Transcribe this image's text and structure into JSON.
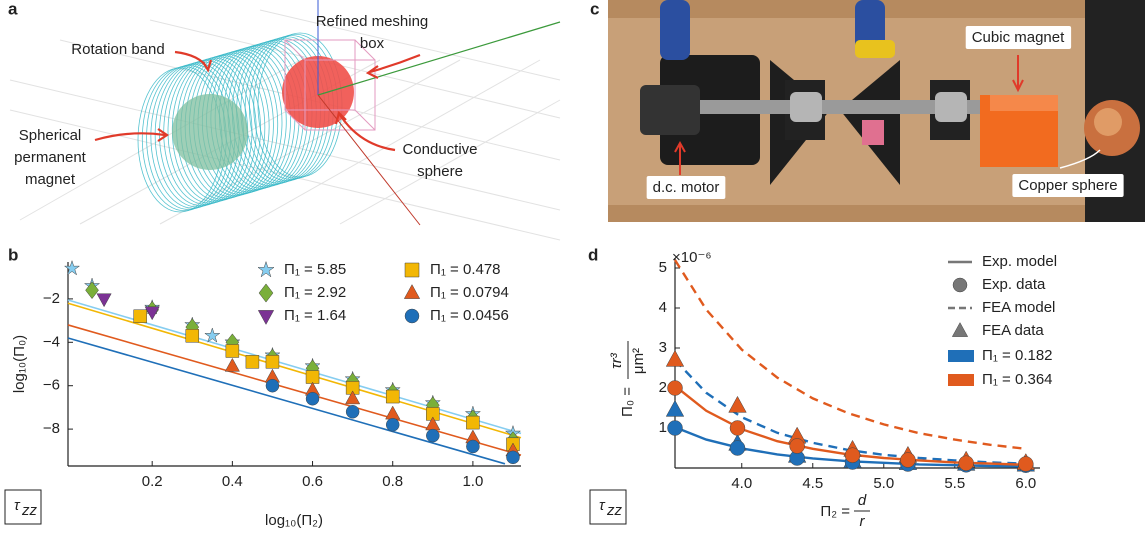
{
  "panel_a": {
    "letter": "a",
    "labels": [
      {
        "lines": [
          "Rotation band"
        ]
      },
      {
        "lines": [
          "Refined meshing",
          "box"
        ]
      },
      {
        "lines": [
          "Spherical",
          "permanent",
          "magnet"
        ]
      },
      {
        "lines": [
          "Conductive",
          "sphere"
        ]
      }
    ]
  },
  "panel_c": {
    "letter": "c",
    "labels": [
      {
        "lines": [
          "Cubic magnet"
        ]
      },
      {
        "lines": [
          "d.c. motor"
        ]
      },
      {
        "lines": [
          "Copper sphere"
        ]
      }
    ]
  },
  "chart_data": [
    {
      "type": "scatter",
      "panel": "b",
      "badge": {
        "symbol": "τ",
        "sub": "zz"
      },
      "x_label": "log₁₀(Π₂)",
      "y_label": "log₁₀(Π₀)",
      "xlim": [
        -0.01,
        1.12
      ],
      "ylim": [
        -9.7,
        -0.3
      ],
      "xticks": [
        0.2,
        0.4,
        0.6,
        0.8,
        {
          "value": 1,
          "label": "1.0"
        }
      ],
      "yticks": [
        {
          "value": -2,
          "label": "−2"
        },
        {
          "value": -4,
          "label": "−4"
        },
        {
          "value": -6,
          "label": "−6"
        },
        {
          "value": -8,
          "label": "−8"
        }
      ],
      "series": [
        {
          "name": "Π₁ = 5.85",
          "color": "#86cdf0",
          "marker": "star",
          "x": [
            0.0,
            0.05,
            0.2,
            0.3,
            0.35,
            0.4,
            0.5,
            0.6,
            0.7,
            0.8,
            0.9,
            1.0,
            1.1
          ],
          "values": [
            -0.6,
            -1.4,
            -2.4,
            -3.2,
            -3.7,
            -4.0,
            -4.6,
            -5.1,
            -5.7,
            -6.2,
            -6.8,
            -7.3,
            -8.2
          ],
          "line_x": [
            -0.01,
            1.12
          ],
          "line_values": [
            -2.05,
            -8.2
          ]
        },
        {
          "name": "Π₁ = 2.92",
          "color": "#7aaf3a",
          "marker": "diamond",
          "x": [
            0.05,
            0.2,
            0.3,
            0.4,
            0.5,
            0.6,
            0.7,
            0.8,
            0.9,
            1.0,
            1.1
          ],
          "values": [
            -1.6,
            -2.5,
            -3.3,
            -4.0,
            -4.7,
            -5.2,
            -5.8,
            -6.3,
            -6.9,
            -7.5,
            -8.5
          ]
        },
        {
          "name": "Π₁ = 1.64",
          "color": "#7b3294",
          "marker": "tri-down",
          "x": [
            0.08,
            0.2
          ],
          "values": [
            -2.0,
            -2.6
          ]
        },
        {
          "name": "Π₁ = 0.478",
          "color": "#f2b705",
          "marker": "square",
          "x": [
            0.17,
            0.3,
            0.4,
            0.45,
            0.5,
            0.6,
            0.7,
            0.8,
            0.9,
            1.0,
            1.1
          ],
          "values": [
            -2.8,
            -3.7,
            -4.4,
            -4.9,
            -4.9,
            -5.6,
            -6.1,
            -6.5,
            -7.3,
            -7.7,
            -8.7
          ],
          "line_x": [
            -0.01,
            1.12
          ],
          "line_values": [
            -2.2,
            -8.4
          ]
        },
        {
          "name": "Π₁ = 0.0794",
          "color": "#e05a1e",
          "marker": "tri-up",
          "x": [
            0.4,
            0.5,
            0.6,
            0.7,
            0.8,
            0.9,
            1.0,
            1.1
          ],
          "values": [
            -5.1,
            -5.6,
            -6.2,
            -6.6,
            -7.3,
            -7.8,
            -8.4,
            -9.0
          ],
          "line_x": [
            -0.01,
            1.12
          ],
          "line_values": [
            -3.2,
            -9.2
          ]
        },
        {
          "name": "Π₁ = 0.0456",
          "color": "#1f6fb8",
          "marker": "circle",
          "x": [
            0.5,
            0.6,
            0.7,
            0.8,
            0.9,
            1.0,
            1.1
          ],
          "values": [
            -6.0,
            -6.6,
            -7.2,
            -7.8,
            -8.3,
            -8.8,
            -9.3
          ],
          "line_x": [
            -0.01,
            1.08
          ],
          "line_values": [
            -3.8,
            -9.6
          ]
        }
      ]
    },
    {
      "type": "line",
      "panel": "d",
      "badge": {
        "symbol": "τ",
        "sub": "zz"
      },
      "y_scale_label": "×10⁻⁶",
      "x_label": {
        "lhs": "Π₂ =",
        "num": "d",
        "den": "r"
      },
      "y_label": {
        "lhs": "Π₀ =",
        "num": "τr³",
        "den": "μm²"
      },
      "xlim": [
        3.53,
        6.1
      ],
      "ylim": [
        0,
        5.25
      ],
      "xticks": [
        {
          "value": 4,
          "label": "4.0"
        },
        4.5,
        {
          "value": 5,
          "label": "5.0"
        },
        5.5,
        {
          "value": 6,
          "label": "6.0"
        }
      ],
      "yticks": [
        1,
        2,
        3,
        4,
        5
      ],
      "legend_styles": [
        {
          "label": "Exp. model",
          "kind": "solid"
        },
        {
          "label": "Exp. data",
          "kind": "circle"
        },
        {
          "label": "FEA model",
          "kind": "dashed"
        },
        {
          "label": "FEA data",
          "kind": "triangle"
        }
      ],
      "x": [
        3.53,
        3.97,
        4.39,
        4.78,
        5.17,
        5.58,
        6.0
      ],
      "model_x": [
        3.53,
        3.75,
        4.0,
        4.25,
        4.5,
        4.75,
        5.0,
        5.25,
        5.5,
        5.75,
        6.0
      ],
      "series": [
        {
          "name": "Π₁ = 0.182",
          "color": "#1f6fb8",
          "exp_data": [
            1.0,
            0.5,
            0.25,
            0.15,
            0.1,
            0.08,
            0.07
          ],
          "fea_data": [
            1.45,
            0.6,
            0.3,
            0.17,
            0.12,
            0.1,
            0.08
          ],
          "exp_model": [
            1.02,
            0.71,
            0.49,
            0.34,
            0.24,
            0.17,
            0.13,
            0.09,
            0.07,
            0.05,
            0.04
          ],
          "fea_model": [
            2.7,
            1.88,
            1.27,
            0.88,
            0.63,
            0.45,
            0.33,
            0.25,
            0.19,
            0.14,
            0.11
          ]
        },
        {
          "name": "Π₁ = 0.364",
          "color": "#e05a1e",
          "exp_data": [
            2.0,
            1.0,
            0.55,
            0.32,
            0.2,
            0.12,
            0.1
          ],
          "fea_data": [
            2.7,
            1.55,
            0.78,
            0.45,
            0.3,
            0.18,
            0.12
          ],
          "exp_model": [
            2.05,
            1.43,
            0.97,
            0.67,
            0.48,
            0.34,
            0.25,
            0.19,
            0.14,
            0.11,
            0.08
          ],
          "fea_model": [
            5.2,
            3.96,
            2.96,
            2.26,
            1.74,
            1.37,
            1.09,
            0.87,
            0.71,
            0.58,
            0.48
          ]
        }
      ]
    }
  ]
}
